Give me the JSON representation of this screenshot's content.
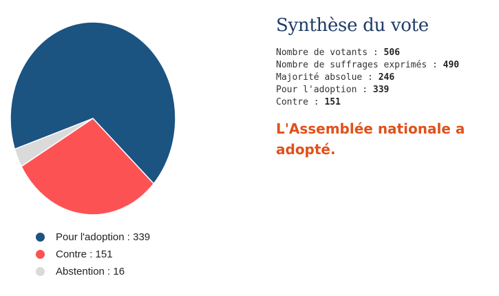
{
  "chart_data": {
    "type": "pie",
    "slices": [
      {
        "label": "Pour l'adoption",
        "value": 339,
        "color": "#1b5381"
      },
      {
        "label": "Contre",
        "value": 151,
        "color": "#fd5253"
      },
      {
        "label": "Abstention",
        "value": 16,
        "color": "#dadada"
      }
    ],
    "legend_position": "bottom"
  },
  "legend": [
    {
      "text": "Pour l'adoption : 339",
      "color": "#1b5381"
    },
    {
      "text": "Contre : 151",
      "color": "#fd5253"
    },
    {
      "text": "Abstention : 16",
      "color": "#dadada"
    }
  ],
  "summary": {
    "title": "Synthèse du vote",
    "stats": [
      {
        "label": "Nombre de votants",
        "value": "506"
      },
      {
        "label": "Nombre de suffrages exprimés",
        "value": "490"
      },
      {
        "label": "Majorité absolue",
        "value": "246"
      },
      {
        "label": "Pour l'adoption",
        "value": "339"
      },
      {
        "label": "Contre",
        "value": "151"
      }
    ],
    "separator": " : ",
    "result": "L'Assemblée nationale a adopté.",
    "result_color": "#e0511b",
    "title_color": "#1f3c66"
  }
}
